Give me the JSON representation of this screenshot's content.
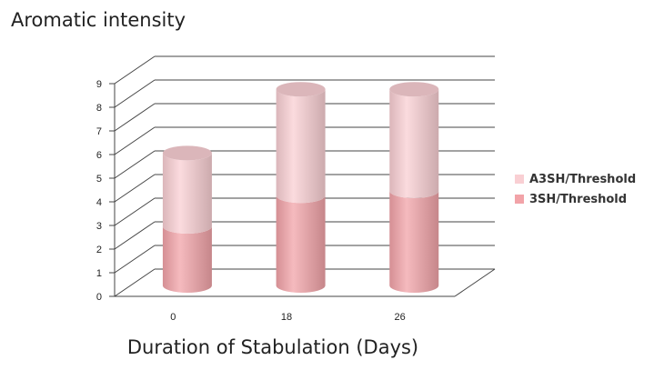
{
  "chart_data": {
    "type": "bar",
    "subtype": "stacked-3d-cylinder",
    "categories": [
      "0",
      "18",
      "26"
    ],
    "series": [
      {
        "name": "3SH/Threshold",
        "values": [
          2.5,
          3.8,
          4.0
        ],
        "color": "#f2a3a8"
      },
      {
        "name": "A3SH/Threshold",
        "values": [
          3.1,
          4.5,
          4.3
        ],
        "color": "#f9cfd3"
      }
    ],
    "ylabel": "Aromatic intensity",
    "xlabel": "Duration of Stabulation (Days)",
    "ylim": [
      0,
      9
    ],
    "yticks": [
      "0",
      "1",
      "2",
      "3",
      "4",
      "5",
      "6",
      "7",
      "8",
      "9"
    ],
    "grid": true,
    "legend": "right"
  }
}
